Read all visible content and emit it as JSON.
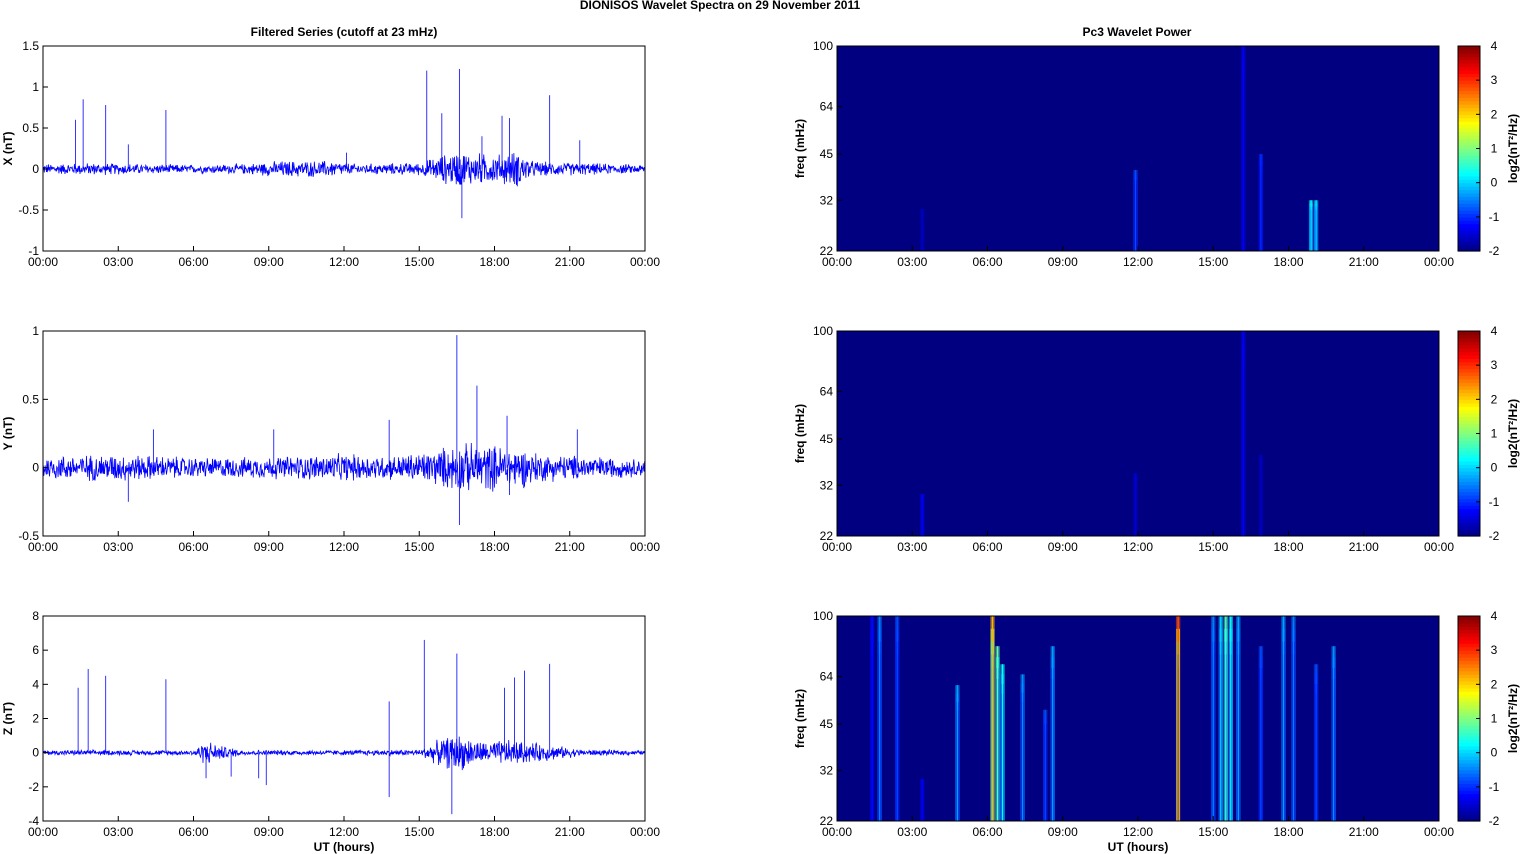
{
  "figure": {
    "title": "DIONISOS Wavelet Spectra on 29 November  2011",
    "left_column_title": "Filtered Series (cutoff at 23 mHz)",
    "right_column_title": "Pc3 Wavelet Power",
    "x_axis_label": "UT (hours)",
    "colorbar_label": "log2(nT²/Hz)"
  },
  "chart_data": [
    {
      "type": "line",
      "component": "X",
      "ylabel": "X (nT)",
      "xlabel": "",
      "x_ticks": [
        "00:00",
        "03:00",
        "06:00",
        "09:00",
        "12:00",
        "15:00",
        "18:00",
        "21:00",
        "00:00"
      ],
      "xlim_hours": [
        0,
        24
      ],
      "ylim": [
        -1,
        1.5
      ],
      "y_ticks": [
        "-1",
        "-0.5",
        "0",
        "0.5",
        "1",
        "1.5"
      ],
      "color": "#0000ff",
      "background_noise_amplitude": [
        [
          0,
          0.05
        ],
        [
          2,
          0.06
        ],
        [
          4,
          0.05
        ],
        [
          6,
          0.04
        ],
        [
          8,
          0.05
        ],
        [
          9.5,
          0.08
        ],
        [
          11.5,
          0.08
        ],
        [
          12.5,
          0.05
        ],
        [
          15,
          0.06
        ],
        [
          15.7,
          0.12
        ],
        [
          16.5,
          0.18
        ],
        [
          18,
          0.14
        ],
        [
          19,
          0.18
        ],
        [
          19.5,
          0.08
        ],
        [
          20,
          0.07
        ],
        [
          21.5,
          0.06
        ],
        [
          24,
          0.04
        ]
      ],
      "spikes": [
        [
          1.3,
          0.6
        ],
        [
          1.6,
          0.85
        ],
        [
          2.5,
          0.78
        ],
        [
          3.4,
          0.3
        ],
        [
          4.9,
          0.72
        ],
        [
          12.1,
          0.2
        ],
        [
          15.3,
          1.2
        ],
        [
          15.9,
          0.68
        ],
        [
          16.6,
          1.22
        ],
        [
          16.7,
          -0.6
        ],
        [
          17.5,
          0.4
        ],
        [
          18.3,
          0.65
        ],
        [
          18.6,
          0.62
        ],
        [
          20.2,
          0.9
        ],
        [
          21.4,
          0.35
        ]
      ]
    },
    {
      "type": "line",
      "component": "Y",
      "ylabel": "Y (nT)",
      "xlabel": "",
      "x_ticks": [
        "00:00",
        "03:00",
        "06:00",
        "09:00",
        "12:00",
        "15:00",
        "18:00",
        "21:00",
        "00:00"
      ],
      "xlim_hours": [
        0,
        24
      ],
      "ylim": [
        -0.5,
        1
      ],
      "y_ticks": [
        "-0.5",
        "0",
        "0.5",
        "1"
      ],
      "color": "#0000ff",
      "background_noise_amplitude": [
        [
          0,
          0.07
        ],
        [
          3,
          0.08
        ],
        [
          4.5,
          0.07
        ],
        [
          6,
          0.06
        ],
        [
          8,
          0.06
        ],
        [
          10,
          0.07
        ],
        [
          12,
          0.08
        ],
        [
          14,
          0.07
        ],
        [
          15.5,
          0.1
        ],
        [
          16.5,
          0.14
        ],
        [
          17.5,
          0.14
        ],
        [
          19,
          0.12
        ],
        [
          20,
          0.08
        ],
        [
          21.5,
          0.07
        ],
        [
          24,
          0.05
        ]
      ],
      "spikes": [
        [
          3.4,
          -0.25
        ],
        [
          4.4,
          0.28
        ],
        [
          9.2,
          0.28
        ],
        [
          13.8,
          0.35
        ],
        [
          16.5,
          0.97
        ],
        [
          16.6,
          -0.42
        ],
        [
          17.3,
          0.6
        ],
        [
          18.5,
          0.38
        ],
        [
          18.6,
          -0.2
        ],
        [
          21.3,
          0.28
        ]
      ]
    },
    {
      "type": "line",
      "component": "Z",
      "ylabel": "Z (nT)",
      "xlabel": "UT (hours)",
      "x_ticks": [
        "00:00",
        "03:00",
        "06:00",
        "09:00",
        "12:00",
        "15:00",
        "18:00",
        "21:00",
        "00:00"
      ],
      "xlim_hours": [
        0,
        24
      ],
      "ylim": [
        -4,
        8
      ],
      "y_ticks": [
        "-4",
        "-2",
        "0",
        "2",
        "4",
        "6",
        "8"
      ],
      "color": "#0000ff",
      "background_noise_amplitude": [
        [
          0,
          0.12
        ],
        [
          3,
          0.12
        ],
        [
          6,
          0.12
        ],
        [
          6.5,
          0.6
        ],
        [
          7,
          0.35
        ],
        [
          8,
          0.12
        ],
        [
          12,
          0.12
        ],
        [
          15,
          0.15
        ],
        [
          15.8,
          0.6
        ],
        [
          16.5,
          0.9
        ],
        [
          17.5,
          0.5
        ],
        [
          18.5,
          0.6
        ],
        [
          20,
          0.4
        ],
        [
          21.5,
          0.15
        ],
        [
          24,
          0.1
        ]
      ],
      "spikes": [
        [
          1.4,
          3.8
        ],
        [
          1.8,
          4.9
        ],
        [
          2.5,
          4.5
        ],
        [
          4.9,
          4.3
        ],
        [
          6.5,
          -1.5
        ],
        [
          7.5,
          -1.4
        ],
        [
          8.6,
          -1.5
        ],
        [
          8.9,
          -1.9
        ],
        [
          13.8,
          3.0
        ],
        [
          13.8,
          -2.6
        ],
        [
          15.2,
          6.6
        ],
        [
          16.3,
          -3.6
        ],
        [
          16.5,
          5.8
        ],
        [
          18.4,
          3.8
        ],
        [
          18.8,
          4.4
        ],
        [
          19.2,
          4.8
        ],
        [
          20.2,
          5.2
        ]
      ]
    },
    {
      "type": "heatmap",
      "component": "X",
      "title": "Pc3 Wavelet Power",
      "ylabel": "freq (mHz)",
      "xlabel": "",
      "x_ticks": [
        "00:00",
        "03:00",
        "06:00",
        "09:00",
        "12:00",
        "15:00",
        "18:00",
        "21:00",
        "00:00"
      ],
      "xlim_hours": [
        0,
        24
      ],
      "y_ticks": [
        "22",
        "32",
        "45",
        "64",
        "100"
      ],
      "ylim_mHz": [
        22,
        100
      ],
      "y_scale": "log",
      "color_range": [
        -2,
        4
      ],
      "colorbar_ticks": [
        "-2",
        "-1",
        "0",
        "1",
        "2",
        "3",
        "4"
      ],
      "colormap": "jet",
      "background_level": -2,
      "events": [
        [
          3.4,
          -1.6,
          30
        ],
        [
          11.9,
          -0.8,
          40
        ],
        [
          16.2,
          -1.3,
          100
        ],
        [
          16.9,
          -1.0,
          45
        ],
        [
          18.9,
          0.3,
          32
        ],
        [
          19.1,
          0.1,
          32
        ]
      ]
    },
    {
      "type": "heatmap",
      "component": "Y",
      "title": "",
      "ylabel": "freq (mHz)",
      "xlabel": "",
      "x_ticks": [
        "00:00",
        "03:00",
        "06:00",
        "09:00",
        "12:00",
        "15:00",
        "18:00",
        "21:00",
        "00:00"
      ],
      "xlim_hours": [
        0,
        24
      ],
      "y_ticks": [
        "22",
        "32",
        "45",
        "64",
        "100"
      ],
      "ylim_mHz": [
        22,
        100
      ],
      "y_scale": "log",
      "color_range": [
        -2,
        4
      ],
      "colorbar_ticks": [
        "-2",
        "-1",
        "0",
        "1",
        "2",
        "3",
        "4"
      ],
      "colormap": "jet",
      "background_level": -2,
      "events": [
        [
          3.4,
          -1.3,
          30
        ],
        [
          11.9,
          -1.5,
          35
        ],
        [
          16.2,
          -1.3,
          100
        ],
        [
          16.9,
          -1.6,
          40
        ]
      ]
    },
    {
      "type": "heatmap",
      "component": "Z",
      "title": "",
      "ylabel": "freq (mHz)",
      "xlabel": "UT (hours)",
      "x_ticks": [
        "00:00",
        "03:00",
        "06:00",
        "09:00",
        "12:00",
        "15:00",
        "18:00",
        "21:00",
        "00:00"
      ],
      "xlim_hours": [
        0,
        24
      ],
      "y_ticks": [
        "22",
        "32",
        "45",
        "64",
        "100"
      ],
      "ylim_mHz": [
        22,
        100
      ],
      "y_scale": "log",
      "color_range": [
        -2,
        4
      ],
      "colorbar_ticks": [
        "-2",
        "-1",
        "0",
        "1",
        "2",
        "3",
        "4"
      ],
      "colormap": "jet",
      "background_level": -2,
      "events": [
        [
          1.4,
          -1.2,
          100
        ],
        [
          1.7,
          -0.5,
          100
        ],
        [
          2.4,
          -0.8,
          100
        ],
        [
          3.4,
          -1.3,
          30
        ],
        [
          4.8,
          -0.3,
          60
        ],
        [
          6.2,
          2.2,
          100
        ],
        [
          6.4,
          0.8,
          80
        ],
        [
          6.6,
          0.3,
          70
        ],
        [
          7.4,
          -0.4,
          65
        ],
        [
          8.3,
          -0.8,
          50
        ],
        [
          8.6,
          -0.3,
          80
        ],
        [
          13.6,
          2.8,
          100
        ],
        [
          15.0,
          -0.5,
          100
        ],
        [
          15.3,
          0.0,
          100
        ],
        [
          15.5,
          0.7,
          100
        ],
        [
          15.7,
          0.3,
          100
        ],
        [
          16.0,
          -0.3,
          100
        ],
        [
          16.9,
          -0.8,
          80
        ],
        [
          17.8,
          -0.3,
          100
        ],
        [
          18.2,
          -0.5,
          100
        ],
        [
          19.1,
          -0.8,
          70
        ],
        [
          19.8,
          -0.4,
          80
        ]
      ]
    }
  ]
}
